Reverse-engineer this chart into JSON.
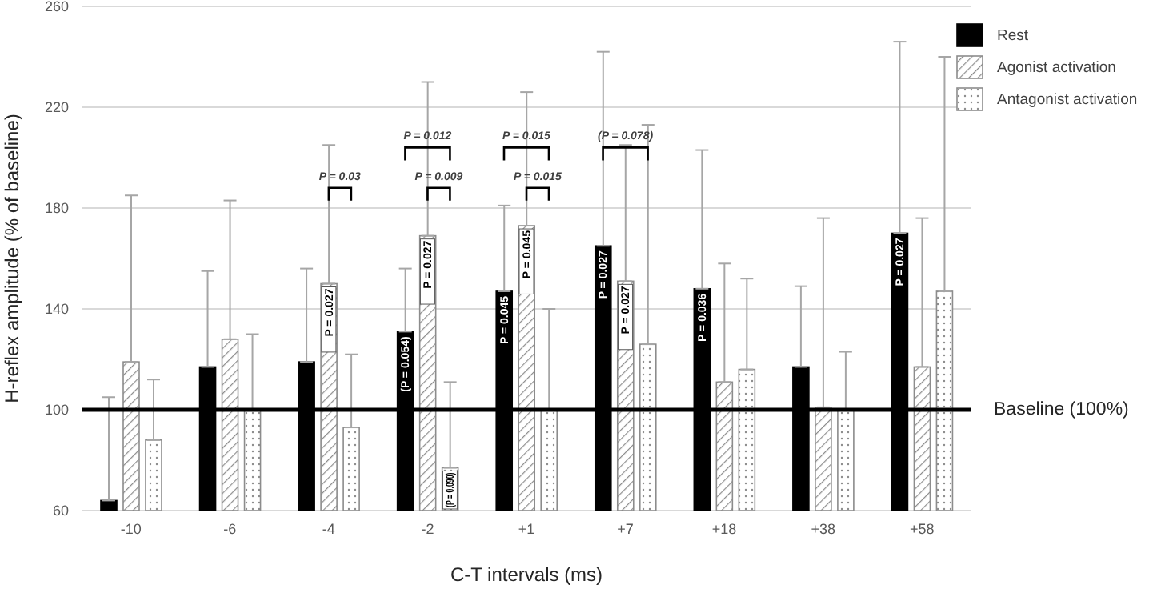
{
  "chart_data": {
    "type": "bar",
    "xlabel": "C-T intervals (ms)",
    "ylabel": "H-reflex amplitude (% of baseline)",
    "categories": [
      "-10",
      "-6",
      "-4",
      "-2",
      "+1",
      "+7",
      "+18",
      "+38",
      "+58"
    ],
    "series": [
      {
        "name": "Rest",
        "color": "#000000",
        "values": [
          64,
          117,
          119,
          131,
          147,
          165,
          148,
          117,
          170
        ],
        "errors": [
          [
            64,
            105
          ],
          [
            117,
            155
          ],
          [
            119,
            156
          ],
          [
            131,
            156
          ],
          [
            147,
            181
          ],
          [
            165,
            242
          ],
          [
            148,
            203
          ],
          [
            117,
            149
          ],
          [
            170,
            246
          ]
        ]
      },
      {
        "name": "Agonist activation",
        "color": "#8c8c8c",
        "values": [
          119,
          128,
          150,
          169,
          173,
          151,
          111,
          101,
          117
        ],
        "errors": [
          [
            119,
            185
          ],
          [
            128,
            183
          ],
          [
            150,
            205
          ],
          [
            169,
            230
          ],
          [
            173,
            226
          ],
          [
            151,
            205
          ],
          [
            111,
            158
          ],
          [
            101,
            176
          ],
          [
            117,
            176
          ]
        ]
      },
      {
        "name": "Antagonist activation",
        "color": "#8c8c8c",
        "values": [
          88,
          100,
          93,
          77,
          100,
          126,
          116,
          100,
          147
        ],
        "errors": [
          [
            88,
            112
          ],
          [
            100,
            130
          ],
          [
            93,
            122
          ],
          [
            77,
            111
          ],
          [
            100,
            140
          ],
          [
            126,
            213
          ],
          [
            116,
            152
          ],
          [
            100,
            123
          ],
          [
            147,
            240
          ]
        ]
      }
    ],
    "ylim": [
      60,
      260
    ],
    "yticks": [
      60,
      100,
      140,
      180,
      220,
      260
    ],
    "grid": "y",
    "legend": "top right",
    "ref_lines": [
      {
        "axis": "y",
        "value": 100,
        "label": "Baseline (100%)",
        "color": "#000000"
      }
    ],
    "annotations": [
      {
        "text": "P = 0.027",
        "x": "-4",
        "y": 150
      },
      {
        "text": "(P = 0.054)",
        "x": "-2",
        "y": 131
      },
      {
        "text": "P = 0.027",
        "x": "-2",
        "y": 169
      },
      {
        "text": "(P = 0.090)",
        "x": "-2",
        "y": 77
      },
      {
        "text": "P = 0.045",
        "x": "+1",
        "y": 147
      },
      {
        "text": "P = 0.045",
        "x": "+1",
        "y": 173
      },
      {
        "text": "P = 0.027",
        "x": "+7",
        "y": 165
      },
      {
        "text": "P = 0.027",
        "x": "+7",
        "y": 151
      },
      {
        "text": "P = 0.036",
        "x": "+18",
        "y": 148
      },
      {
        "text": "P = 0.027",
        "x": "+58",
        "y": 170
      },
      {
        "text": "P = 0.03",
        "x": "-4",
        "y": 188
      },
      {
        "text": "P = 0.012",
        "x": "-2",
        "y": 204
      },
      {
        "text": "P = 0.009",
        "x": "-2",
        "y": 188
      },
      {
        "text": "P = 0.015",
        "x": "+1",
        "y": 204
      },
      {
        "text": "P = 0.015",
        "x": "+1",
        "y": 188
      },
      {
        "text": "(P = 0.078)",
        "x": "+7",
        "y": 204
      }
    ]
  }
}
